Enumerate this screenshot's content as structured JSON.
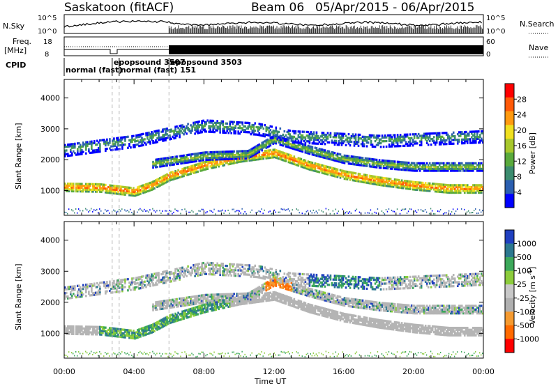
{
  "header": {
    "station": "Saskatoon (fitACF)",
    "beam": "Beam 06",
    "date_range": "05/Apr/2015 - 06/Apr/2015"
  },
  "top_panels": {
    "nsky_label": "N.Sky",
    "nsearch_label": "N.Search",
    "left_ticks_top": [
      "10^5",
      "10^0"
    ],
    "right_ticks_top": [
      "10^5",
      "10^0"
    ],
    "freq_label": "Freq.",
    "freq_unit": "[MHz]",
    "freq_ticks": [
      "18",
      "8"
    ],
    "nave_label": "Nave",
    "nave_ticks": [
      "60",
      "0"
    ],
    "cpid_label": "CPID",
    "cpid_events": [
      {
        "time": 0.0,
        "label": "normal (fast)",
        "row": 1
      },
      {
        "time": 2.75,
        "label": "epopsound 3507",
        "row": 0
      },
      {
        "time": 3.15,
        "label": "normal (fast) 151",
        "row": 1
      },
      {
        "time": 6.0,
        "label": "epopsound 3503",
        "row": 0
      }
    ]
  },
  "colors": {
    "power_scale": [
      "#0000ff",
      "#2b5fb0",
      "#3c8c6f",
      "#5aaa3c",
      "#a8c82c",
      "#f0e020",
      "#ff9a10",
      "#ff5a08",
      "#ff0000"
    ],
    "velocity_scale": [
      "#ff0000",
      "#ff6a00",
      "#f59a30",
      "#b0b0b0",
      "#c8c8c8",
      "#8ccc3c",
      "#3ca85a",
      "#2c7890",
      "#2040c0"
    ],
    "ground_scatter": "#b4b4b4"
  },
  "chart_data": [
    {
      "type": "heatmap",
      "name": "power",
      "ylabel": "Slant Range [km]",
      "xlabel": "Time UT",
      "xlim": [
        0,
        24
      ],
      "ylim": [
        200,
        4600
      ],
      "x_ticks": [
        "00:00",
        "04:00",
        "08:00",
        "12:00",
        "16:00",
        "20:00",
        "00:00"
      ],
      "y_ticks": [
        1000,
        2000,
        3000,
        4000
      ],
      "colorbar_label": "Power [dB]",
      "colorbar_ticks": [
        "28",
        "24",
        "20",
        "16",
        "12",
        "8",
        "4"
      ],
      "bands": [
        {
          "range_km": [
            [
              0,
              1100
            ],
            [
              2,
              1080
            ],
            [
              4,
              950
            ],
            [
              5,
              1150
            ],
            [
              6,
              1450
            ],
            [
              8,
              1800
            ],
            [
              10,
              2050
            ],
            [
              12,
              2200
            ],
            [
              14,
              1800
            ],
            [
              16,
              1500
            ],
            [
              18,
              1300
            ],
            [
              20,
              1150
            ],
            [
              22,
              1050
            ],
            [
              24,
              1050
            ]
          ],
          "width_km": 280,
          "power_db": 24
        },
        {
          "range_km": [
            [
              5,
              1850
            ],
            [
              8,
              2100
            ],
            [
              10.5,
              2150
            ],
            [
              12,
              2650
            ],
            [
              14,
              2300
            ],
            [
              16,
              2000
            ],
            [
              18,
              1850
            ],
            [
              20,
              1750
            ],
            [
              24,
              1750
            ]
          ],
          "width_km": 260,
          "power_db": 14
        },
        {
          "range_km": [
            [
              0,
              2300
            ],
            [
              4,
              2600
            ],
            [
              8,
              3100
            ],
            [
              11,
              3000
            ],
            [
              13,
              2750
            ],
            [
              18,
              2600
            ],
            [
              24,
              2750
            ]
          ],
          "width_km": 420,
          "power_db": 10
        }
      ]
    },
    {
      "type": "heatmap",
      "name": "velocity",
      "ylabel": "Slant Range [km]",
      "xlabel": "Time UT",
      "xlim": [
        0,
        24
      ],
      "ylim": [
        200,
        4600
      ],
      "x_ticks": [
        "00:00",
        "04:00",
        "08:00",
        "12:00",
        "16:00",
        "20:00",
        "00:00"
      ],
      "y_ticks": [
        1000,
        2000,
        3000,
        4000
      ],
      "colorbar_label": "Velocity [m s^-1]",
      "colorbar_ticks": [
        "1000",
        "500",
        "100",
        "25",
        "-25",
        "-100",
        "-500",
        "-1000"
      ]
    }
  ]
}
